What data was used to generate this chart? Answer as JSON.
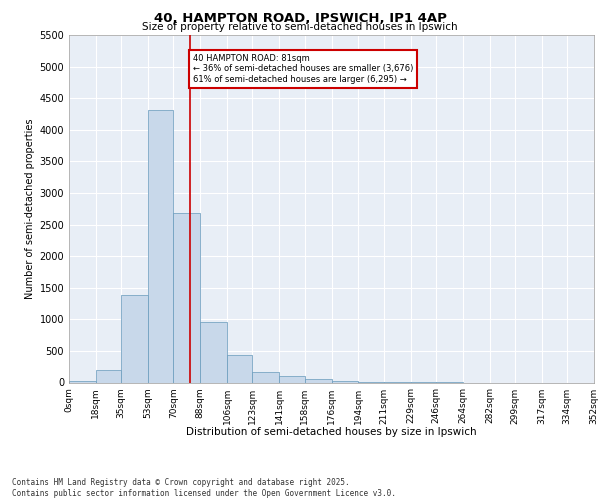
{
  "title_line1": "40, HAMPTON ROAD, IPSWICH, IP1 4AP",
  "title_line2": "Size of property relative to semi-detached houses in Ipswich",
  "xlabel": "Distribution of semi-detached houses by size in Ipswich",
  "ylabel": "Number of semi-detached properties",
  "property_size": 81,
  "property_label": "40 HAMPTON ROAD: 81sqm",
  "pct_smaller": 36,
  "count_smaller": 3676,
  "pct_larger": 61,
  "count_larger": 6295,
  "footnote_line1": "Contains HM Land Registry data © Crown copyright and database right 2025.",
  "footnote_line2": "Contains public sector information licensed under the Open Government Licence v3.0.",
  "bar_color": "#c8d8ea",
  "bar_edge_color": "#6699bb",
  "vline_color": "#cc0000",
  "annotation_box_color": "#cc0000",
  "background_color": "#e8eef6",
  "grid_color": "#ffffff",
  "bin_edges": [
    0,
    18,
    35,
    53,
    70,
    88,
    106,
    123,
    141,
    158,
    176,
    194,
    211,
    229,
    246,
    264,
    282,
    299,
    317,
    334,
    352
  ],
  "bin_labels": [
    "0sqm",
    "18sqm",
    "35sqm",
    "53sqm",
    "70sqm",
    "88sqm",
    "106sqm",
    "123sqm",
    "141sqm",
    "158sqm",
    "176sqm",
    "194sqm",
    "211sqm",
    "229sqm",
    "246sqm",
    "264sqm",
    "282sqm",
    "299sqm",
    "317sqm",
    "334sqm",
    "352sqm"
  ],
  "bar_heights": [
    30,
    200,
    1380,
    4320,
    2680,
    950,
    430,
    160,
    100,
    55,
    30,
    10,
    5,
    2,
    1,
    0,
    0,
    0,
    0,
    0
  ],
  "ylim": [
    0,
    5500
  ],
  "yticks": [
    0,
    500,
    1000,
    1500,
    2000,
    2500,
    3000,
    3500,
    4000,
    4500,
    5000,
    5500
  ]
}
